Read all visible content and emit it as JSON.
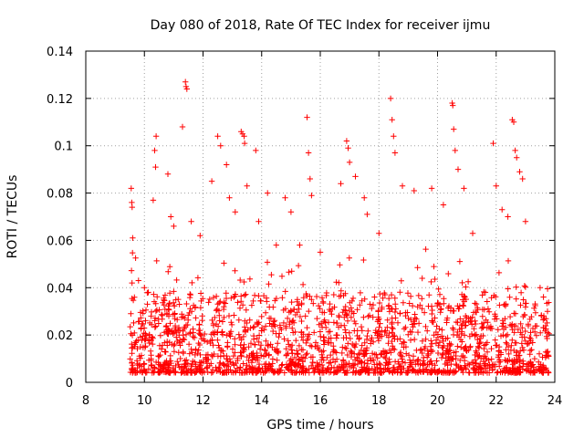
{
  "chart_data": {
    "type": "scatter",
    "title": "Day 080 of 2018, Rate Of TEC Index for receiver ijmu",
    "xlabel": "GPS time / hours",
    "ylabel": "ROTI / TECUs",
    "xlim": [
      8,
      24
    ],
    "ylim": [
      0,
      0.14
    ],
    "xticks": [
      8,
      10,
      12,
      14,
      16,
      18,
      20,
      22,
      24
    ],
    "xtick_labels": [
      "8",
      "10",
      "12",
      "14",
      "16",
      "18",
      "20",
      "22",
      "24"
    ],
    "yticks": [
      0,
      0.02,
      0.04,
      0.06,
      0.08,
      0.1,
      0.12,
      0.14
    ],
    "ytick_labels": [
      "0",
      "0.02",
      "0.04",
      "0.06",
      "0.08",
      "0.1",
      "0.12",
      "0.14"
    ],
    "grid": true,
    "marker": "plus",
    "color": "#ff0000",
    "data_x_range": [
      9.5,
      23.8
    ],
    "series": [
      {
        "name": "ROTI",
        "note": "dense cloud of points, mostly 0.005–0.04 TECU/min; representative peak values listed",
        "points": [
          [
            9.55,
            0.082
          ],
          [
            9.57,
            0.076
          ],
          [
            9.58,
            0.074
          ],
          [
            9.6,
            0.061
          ],
          [
            9.8,
            0.043
          ],
          [
            10.0,
            0.04
          ],
          [
            10.1,
            0.033
          ],
          [
            10.35,
            0.098
          ],
          [
            10.4,
            0.104
          ],
          [
            10.38,
            0.091
          ],
          [
            10.3,
            0.077
          ],
          [
            10.8,
            0.088
          ],
          [
            10.9,
            0.07
          ],
          [
            11.0,
            0.066
          ],
          [
            11.3,
            0.108
          ],
          [
            11.4,
            0.127
          ],
          [
            11.42,
            0.125
          ],
          [
            11.45,
            0.124
          ],
          [
            11.6,
            0.068
          ],
          [
            11.9,
            0.062
          ],
          [
            12.3,
            0.085
          ],
          [
            12.5,
            0.104
          ],
          [
            12.6,
            0.1
          ],
          [
            12.8,
            0.092
          ],
          [
            12.9,
            0.078
          ],
          [
            13.1,
            0.072
          ],
          [
            13.3,
            0.106
          ],
          [
            13.35,
            0.105
          ],
          [
            13.4,
            0.104
          ],
          [
            13.42,
            0.101
          ],
          [
            13.5,
            0.083
          ],
          [
            13.8,
            0.098
          ],
          [
            13.9,
            0.068
          ],
          [
            14.2,
            0.08
          ],
          [
            14.5,
            0.058
          ],
          [
            14.8,
            0.078
          ],
          [
            15.0,
            0.072
          ],
          [
            15.3,
            0.058
          ],
          [
            15.55,
            0.112
          ],
          [
            15.6,
            0.097
          ],
          [
            15.65,
            0.086
          ],
          [
            15.7,
            0.079
          ],
          [
            16.0,
            0.055
          ],
          [
            16.7,
            0.084
          ],
          [
            16.9,
            0.102
          ],
          [
            16.95,
            0.099
          ],
          [
            17.0,
            0.093
          ],
          [
            17.2,
            0.087
          ],
          [
            17.5,
            0.078
          ],
          [
            17.6,
            0.071
          ],
          [
            18.0,
            0.063
          ],
          [
            18.4,
            0.12
          ],
          [
            18.45,
            0.111
          ],
          [
            18.5,
            0.104
          ],
          [
            18.55,
            0.097
          ],
          [
            18.8,
            0.083
          ],
          [
            19.2,
            0.081
          ],
          [
            19.8,
            0.082
          ],
          [
            20.2,
            0.075
          ],
          [
            20.5,
            0.118
          ],
          [
            20.52,
            0.117
          ],
          [
            20.55,
            0.107
          ],
          [
            20.6,
            0.098
          ],
          [
            20.7,
            0.09
          ],
          [
            20.9,
            0.082
          ],
          [
            21.2,
            0.063
          ],
          [
            21.9,
            0.101
          ],
          [
            22.0,
            0.083
          ],
          [
            22.2,
            0.073
          ],
          [
            22.4,
            0.07
          ],
          [
            22.55,
            0.111
          ],
          [
            22.6,
            0.11
          ],
          [
            22.65,
            0.098
          ],
          [
            22.7,
            0.095
          ],
          [
            22.8,
            0.089
          ],
          [
            22.9,
            0.086
          ],
          [
            23.0,
            0.068
          ],
          [
            23.5,
            0.04
          ],
          [
            23.75,
            0.03
          ]
        ]
      }
    ]
  }
}
